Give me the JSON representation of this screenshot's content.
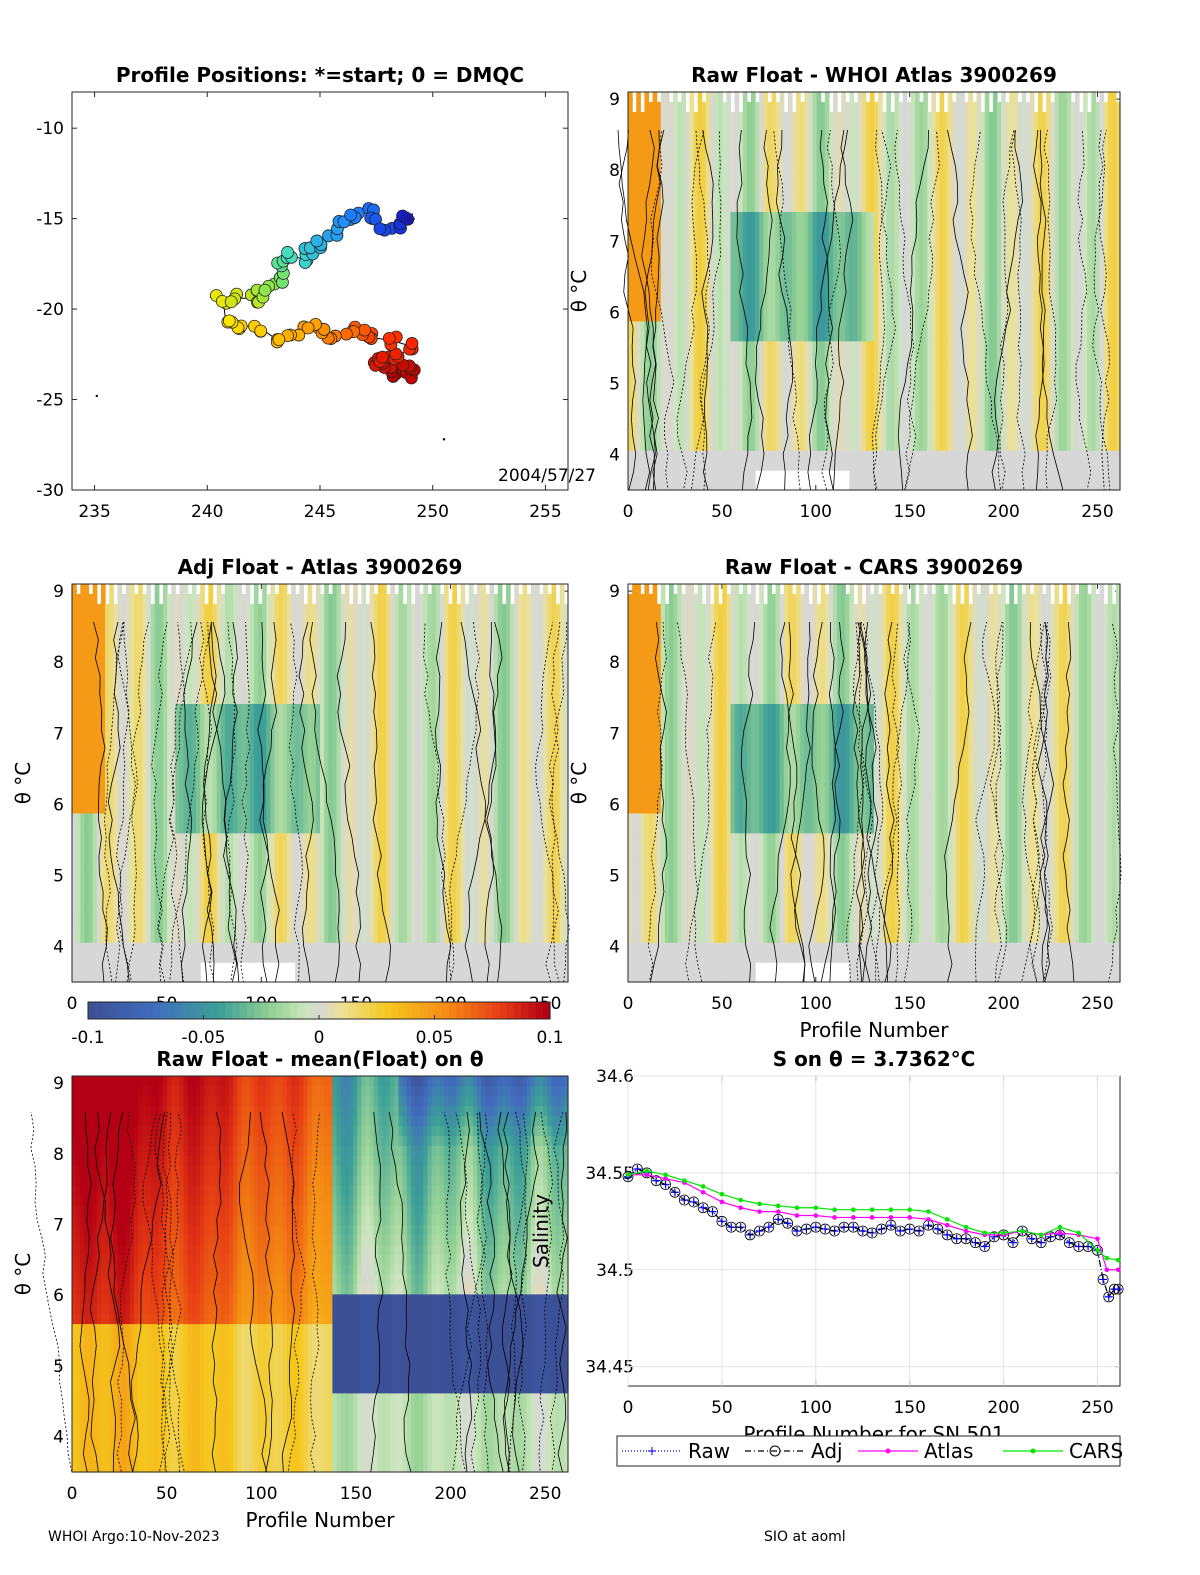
{
  "chart_data": [
    {
      "type": "scatter",
      "title": "Profile Positions: *=start; 0 = DMQC",
      "xlim": [
        234,
        256
      ],
      "ylim": [
        -30,
        -8
      ],
      "xticks": [
        235,
        240,
        245,
        250,
        255
      ],
      "yticks": [
        -10,
        -15,
        -20,
        -25,
        -30
      ],
      "date_label": "2004/57/27",
      "track": [
        {
          "lon": 248.9,
          "lat": -15.0
        },
        {
          "lon": 248.4,
          "lat": -15.3
        },
        {
          "lon": 247.9,
          "lat": -15.6
        },
        {
          "lon": 247.5,
          "lat": -15.1
        },
        {
          "lon": 247.2,
          "lat": -14.6
        },
        {
          "lon": 246.6,
          "lat": -14.9
        },
        {
          "lon": 246.1,
          "lat": -15.3
        },
        {
          "lon": 245.6,
          "lat": -15.7
        },
        {
          "lon": 245.1,
          "lat": -16.4
        },
        {
          "lon": 244.6,
          "lat": -16.8
        },
        {
          "lon": 244.2,
          "lat": -17.2
        },
        {
          "lon": 243.8,
          "lat": -17.1
        },
        {
          "lon": 243.4,
          "lat": -17.6
        },
        {
          "lon": 243.2,
          "lat": -18.3
        },
        {
          "lon": 242.8,
          "lat": -18.7
        },
        {
          "lon": 242.5,
          "lat": -19.1
        },
        {
          "lon": 242.1,
          "lat": -19.4
        },
        {
          "lon": 241.3,
          "lat": -19.4
        },
        {
          "lon": 240.7,
          "lat": -19.4
        },
        {
          "lon": 240.8,
          "lat": -20.5
        },
        {
          "lon": 241.6,
          "lat": -20.9
        },
        {
          "lon": 242.4,
          "lat": -21.1
        },
        {
          "lon": 243.0,
          "lat": -21.6
        },
        {
          "lon": 243.8,
          "lat": -21.4
        },
        {
          "lon": 244.5,
          "lat": -21.0
        },
        {
          "lon": 245.0,
          "lat": -21.1
        },
        {
          "lon": 245.6,
          "lat": -21.6
        },
        {
          "lon": 246.2,
          "lat": -21.4
        },
        {
          "lon": 246.8,
          "lat": -21.2
        },
        {
          "lon": 247.4,
          "lat": -21.6
        },
        {
          "lon": 248.1,
          "lat": -21.7
        },
        {
          "lon": 248.9,
          "lat": -22.0
        },
        {
          "lon": 248.6,
          "lat": -22.6
        },
        {
          "lon": 247.8,
          "lat": -22.8
        },
        {
          "lon": 247.4,
          "lat": -22.9
        },
        {
          "lon": 248.0,
          "lat": -23.2
        },
        {
          "lon": 248.7,
          "lat": -23.3
        },
        {
          "lon": 249.0,
          "lat": -23.6
        },
        {
          "lon": 248.4,
          "lat": -23.7
        }
      ],
      "stray_points": [
        {
          "lon": 235.1,
          "lat": -24.8
        },
        {
          "lon": 250.5,
          "lat": -27.2
        }
      ]
    },
    {
      "type": "heatmap",
      "title": "Raw Float - WHOI Atlas  3900269",
      "xlabel": "",
      "ylabel": "θ °C",
      "xlim": [
        0,
        262
      ],
      "ylim": [
        3.5,
        9.1
      ],
      "xticks": [
        0,
        50,
        100,
        150,
        200,
        250
      ],
      "yticks": [
        4,
        5,
        6,
        7,
        8,
        9
      ],
      "data_source": "anomaly"
    },
    {
      "type": "heatmap",
      "title": "Adj Float - Atlas  3900269",
      "xlabel": "",
      "ylabel": "θ °C",
      "xlim": [
        0,
        262
      ],
      "ylim": [
        3.5,
        9.1
      ],
      "xticks": [
        0,
        50,
        100,
        150,
        200,
        250
      ],
      "yticks": [
        4,
        5,
        6,
        7,
        8,
        9
      ],
      "data_source": "anomaly"
    },
    {
      "type": "heatmap",
      "title": "Raw Float - CARS  3900269",
      "xlabel": "Profile Number",
      "ylabel": "θ °C",
      "xlim": [
        0,
        262
      ],
      "ylim": [
        3.5,
        9.1
      ],
      "xticks": [
        0,
        50,
        100,
        150,
        200,
        250
      ],
      "yticks": [
        4,
        5,
        6,
        7,
        8,
        9
      ],
      "data_source": "anomaly"
    },
    {
      "type": "colorbar",
      "clim": [
        -0.1,
        0.1
      ],
      "ticks": [
        -0.1,
        -0.05,
        0,
        0.05,
        0.1
      ],
      "tick_labels": [
        "-0.1",
        "-0.05",
        "0",
        "0.05",
        "0.1"
      ]
    },
    {
      "type": "heatmap",
      "title": "Raw Float - mean(Float) on θ",
      "xlabel": "Profile Number",
      "ylabel": "θ °C",
      "xlim": [
        0,
        262
      ],
      "ylim": [
        3.5,
        9.1
      ],
      "xticks": [
        0,
        50,
        100,
        150,
        200,
        250
      ],
      "yticks": [
        4,
        5,
        6,
        7,
        8,
        9
      ],
      "data_source": "mean_anomaly"
    },
    {
      "type": "line",
      "title": "S on θ = 3.7362°C",
      "xlabel": "Profile Number for SN 501",
      "ylabel": "Salinity",
      "xlim": [
        0,
        262
      ],
      "ylim": [
        34.44,
        34.6
      ],
      "xticks": [
        0,
        50,
        100,
        150,
        200,
        250
      ],
      "yticks": [
        34.45,
        34.5,
        34.55,
        34.6
      ],
      "ytick_labels": [
        "34.45",
        "34.5",
        "34.55",
        "34.6"
      ],
      "legend": [
        "Raw",
        "Adj",
        "Atlas",
        "CARS"
      ],
      "series": [
        {
          "name": "Raw",
          "color": "#0000ff",
          "x": [
            0,
            5,
            10,
            15,
            20,
            25,
            30,
            35,
            40,
            45,
            50,
            55,
            60,
            65,
            70,
            75,
            80,
            85,
            90,
            95,
            100,
            105,
            110,
            115,
            120,
            125,
            130,
            135,
            140,
            145,
            150,
            155,
            160,
            165,
            170,
            175,
            180,
            185,
            190,
            195,
            200,
            205,
            210,
            215,
            220,
            225,
            230,
            235,
            240,
            245,
            250,
            253,
            256,
            259,
            261
          ],
          "y": [
            34.548,
            34.552,
            34.55,
            34.546,
            34.544,
            34.54,
            34.536,
            34.535,
            34.532,
            34.53,
            34.525,
            34.522,
            34.522,
            34.518,
            34.52,
            34.522,
            34.526,
            34.524,
            34.52,
            34.521,
            34.522,
            34.521,
            34.52,
            34.522,
            34.522,
            34.52,
            34.519,
            34.521,
            34.523,
            34.52,
            34.521,
            34.52,
            34.523,
            34.521,
            34.518,
            34.516,
            34.516,
            34.514,
            34.512,
            34.517,
            34.518,
            34.514,
            34.52,
            34.516,
            34.514,
            34.517,
            34.518,
            34.514,
            34.512,
            34.512,
            34.51,
            34.495,
            34.486,
            34.49,
            34.49
          ]
        },
        {
          "name": "Adj",
          "color": "#000000",
          "x": [
            0,
            5,
            10,
            15,
            20,
            25,
            30,
            35,
            40,
            45,
            50,
            55,
            60,
            65,
            70,
            75,
            80,
            85,
            90,
            95,
            100,
            105,
            110,
            115,
            120,
            125,
            130,
            135,
            140,
            145,
            150,
            155,
            160,
            165,
            170,
            175,
            180,
            185,
            190,
            195,
            200,
            205,
            210,
            215,
            220,
            225,
            230,
            235,
            240,
            245,
            250,
            253,
            256,
            259,
            261
          ],
          "y": [
            34.548,
            34.552,
            34.55,
            34.546,
            34.544,
            34.54,
            34.536,
            34.535,
            34.532,
            34.53,
            34.525,
            34.522,
            34.522,
            34.518,
            34.52,
            34.522,
            34.526,
            34.524,
            34.52,
            34.521,
            34.522,
            34.521,
            34.52,
            34.522,
            34.522,
            34.52,
            34.519,
            34.521,
            34.523,
            34.52,
            34.521,
            34.52,
            34.523,
            34.521,
            34.518,
            34.516,
            34.516,
            34.514,
            34.512,
            34.517,
            34.518,
            34.514,
            34.52,
            34.516,
            34.514,
            34.517,
            34.518,
            34.514,
            34.512,
            34.512,
            34.51,
            34.495,
            34.486,
            34.49,
            34.49
          ]
        },
        {
          "name": "Atlas",
          "color": "#ff00ff",
          "x": [
            0,
            10,
            20,
            30,
            40,
            50,
            60,
            70,
            80,
            90,
            100,
            110,
            120,
            130,
            140,
            150,
            160,
            170,
            180,
            190,
            200,
            210,
            220,
            230,
            240,
            250,
            255,
            261
          ],
          "y": [
            34.549,
            34.549,
            34.547,
            34.545,
            34.54,
            34.535,
            34.532,
            34.53,
            34.53,
            34.528,
            34.528,
            34.527,
            34.527,
            34.527,
            34.527,
            34.527,
            34.526,
            34.523,
            34.52,
            34.518,
            34.518,
            34.52,
            34.518,
            34.519,
            34.518,
            34.516,
            34.5,
            34.5
          ]
        },
        {
          "name": "CARS",
          "color": "#00e600",
          "x": [
            0,
            10,
            20,
            30,
            40,
            50,
            60,
            70,
            80,
            90,
            100,
            110,
            120,
            130,
            140,
            150,
            160,
            170,
            180,
            190,
            200,
            210,
            220,
            230,
            240,
            250,
            255,
            261
          ],
          "y": [
            34.549,
            34.551,
            34.549,
            34.546,
            34.543,
            34.539,
            34.536,
            34.534,
            34.533,
            34.532,
            34.532,
            34.531,
            34.531,
            34.531,
            34.531,
            34.531,
            34.53,
            34.526,
            34.522,
            34.519,
            34.519,
            34.52,
            34.518,
            34.522,
            34.519,
            34.51,
            34.506,
            34.505
          ]
        }
      ]
    }
  ],
  "footer": {
    "left": "WHOI Argo:10-Nov-2023",
    "right": "SIO at aoml"
  }
}
